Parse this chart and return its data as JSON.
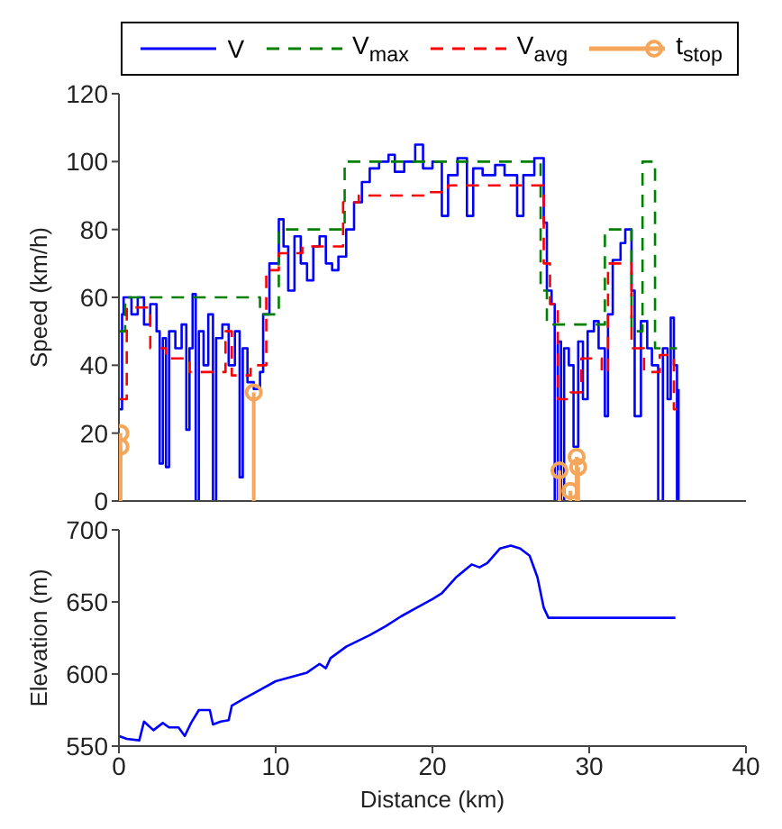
{
  "chart_data": [
    {
      "type": "step",
      "xlim": [
        0,
        40
      ],
      "xticks": [
        0,
        10,
        20,
        30,
        40
      ],
      "tick_labels": "y",
      "ylim": [
        0,
        120
      ],
      "yticks": [
        0,
        20,
        40,
        60,
        80,
        100,
        120
      ],
      "ylabel": "Speed (km/h)",
      "legend": "top",
      "series": [
        {
          "name": "V",
          "type": "step",
          "color": "#0000ff",
          "line_style": "solid",
          "x": [
            0,
            0.2,
            0.3,
            0.8,
            1.2,
            1.6,
            2.0,
            2.4,
            2.6,
            2.8,
            3.0,
            3.2,
            3.6,
            4.0,
            4.3,
            4.5,
            4.7,
            4.9,
            5.1,
            5.4,
            5.7,
            6.0,
            6.2,
            6.6,
            7.0,
            7.4,
            7.7,
            7.9,
            8.2,
            8.6,
            9.0,
            9.2,
            9.6,
            10.2,
            10.5,
            10.8,
            11.2,
            11.6,
            12.0,
            12.4,
            12.8,
            13.2,
            13.6,
            14.0,
            14.5,
            15.0,
            15.5,
            16.0,
            16.6,
            17.2,
            17.6,
            18.2,
            18.9,
            19.4,
            20.0,
            20.6,
            21.0,
            21.6,
            22.2,
            22.6,
            23.2,
            24.0,
            24.6,
            25.4,
            25.8,
            26.5,
            27.1,
            27.3,
            27.6,
            27.8,
            28.0,
            28.2,
            28.4,
            28.7,
            29.0,
            29.3,
            29.6,
            29.9,
            30.3,
            30.6,
            31.0,
            31.2,
            31.5,
            32.0,
            32.3,
            32.7,
            32.9,
            33.3,
            33.7,
            34.0,
            34.4,
            34.7,
            35.0,
            35.2,
            35.4,
            35.6,
            35.7
          ],
          "values": [
            27,
            55,
            60,
            55,
            60,
            52,
            58,
            50,
            11,
            48,
            10,
            50,
            45,
            52,
            21,
            45,
            61,
            0,
            50,
            40,
            55,
            0,
            48,
            52,
            40,
            50,
            7,
            45,
            35,
            33,
            38,
            55,
            70,
            83,
            75,
            62,
            78,
            70,
            65,
            75,
            78,
            70,
            68,
            72,
            80,
            88,
            94,
            98,
            100,
            102,
            97,
            100,
            105,
            98,
            100,
            84,
            96,
            101,
            84,
            98,
            96,
            99,
            96,
            84,
            96,
            101,
            82,
            62,
            58,
            0,
            47,
            0,
            45,
            40,
            16,
            47,
            30,
            50,
            53,
            45,
            25,
            55,
            71,
            76,
            80,
            62,
            25,
            53,
            45,
            40,
            0,
            45,
            30,
            54,
            40,
            0,
            33
          ]
        },
        {
          "name": "V$_{max}$",
          "type": "step",
          "color": "#008000",
          "line_style": "dashed",
          "x": [
            0,
            0.4,
            9.0,
            10.2,
            14.4,
            26.9,
            27.3,
            27.6,
            31.0,
            32.7,
            33.4,
            34.2,
            35.6
          ],
          "values": [
            50,
            60,
            55,
            80,
            100,
            62,
            52,
            52,
            80,
            50,
            100,
            45,
            45
          ]
        },
        {
          "name": "V$_{avg}$",
          "type": "step",
          "color": "#ff0000",
          "line_style": "dashed",
          "x": [
            0,
            0.5,
            2,
            3,
            4.5,
            6.8,
            7.2,
            8.4,
            9.4,
            10.2,
            11.7,
            14.3,
            15.3,
            19.5,
            21,
            27.1,
            27.5,
            28,
            28.8,
            29.5,
            30.8,
            31.2,
            32.7,
            33.5,
            34.5,
            35.4,
            35.6
          ],
          "values": [
            30,
            57,
            45,
            42,
            38,
            50,
            37,
            40,
            68,
            73,
            75,
            88,
            90,
            91,
            93,
            70,
            58,
            30,
            32,
            42,
            38,
            70,
            45,
            38,
            43,
            27,
            27
          ]
        },
        {
          "name": "t$_{stop}$",
          "type": "lollipop",
          "color": "#f5a65b",
          "marker": "circle",
          "x": [
            0.1,
            0.1,
            8.6,
            28.1,
            28.8,
            29.2,
            29.3
          ],
          "values": [
            20,
            16,
            32,
            9,
            3,
            13,
            10
          ]
        }
      ]
    },
    {
      "type": "line",
      "xlim": [
        0,
        40
      ],
      "xticks": [
        0,
        10,
        20,
        30,
        40
      ],
      "ylim": [
        550,
        700
      ],
      "yticks": [
        550,
        600,
        650,
        700
      ],
      "xlabel": "Distance (km)",
      "ylabel": "Elevation (m)",
      "color": "#0000ff",
      "x": [
        0,
        0.5,
        1.3,
        1.6,
        2.2,
        2.8,
        3.2,
        3.8,
        4.2,
        4.6,
        5.1,
        5.8,
        6.0,
        6.5,
        7.0,
        7.2,
        8,
        9,
        10,
        11,
        12,
        12.8,
        13.2,
        13.5,
        14.5,
        16,
        17,
        18,
        19,
        20,
        20.6,
        21.5,
        22.5,
        23,
        23.5,
        24.3,
        25,
        25.6,
        26.2,
        26.7,
        27.1,
        27.4,
        30,
        35.5
      ],
      "values": [
        557,
        555,
        554,
        567,
        561,
        566,
        563,
        563,
        557,
        566,
        575,
        575,
        565,
        567,
        568,
        578,
        583,
        589,
        595,
        598,
        601,
        607,
        604,
        611,
        619,
        627,
        633,
        640,
        646,
        652,
        656,
        667,
        676,
        674,
        677,
        687,
        689,
        687,
        682,
        667,
        646,
        639,
        639,
        639
      ]
    }
  ]
}
